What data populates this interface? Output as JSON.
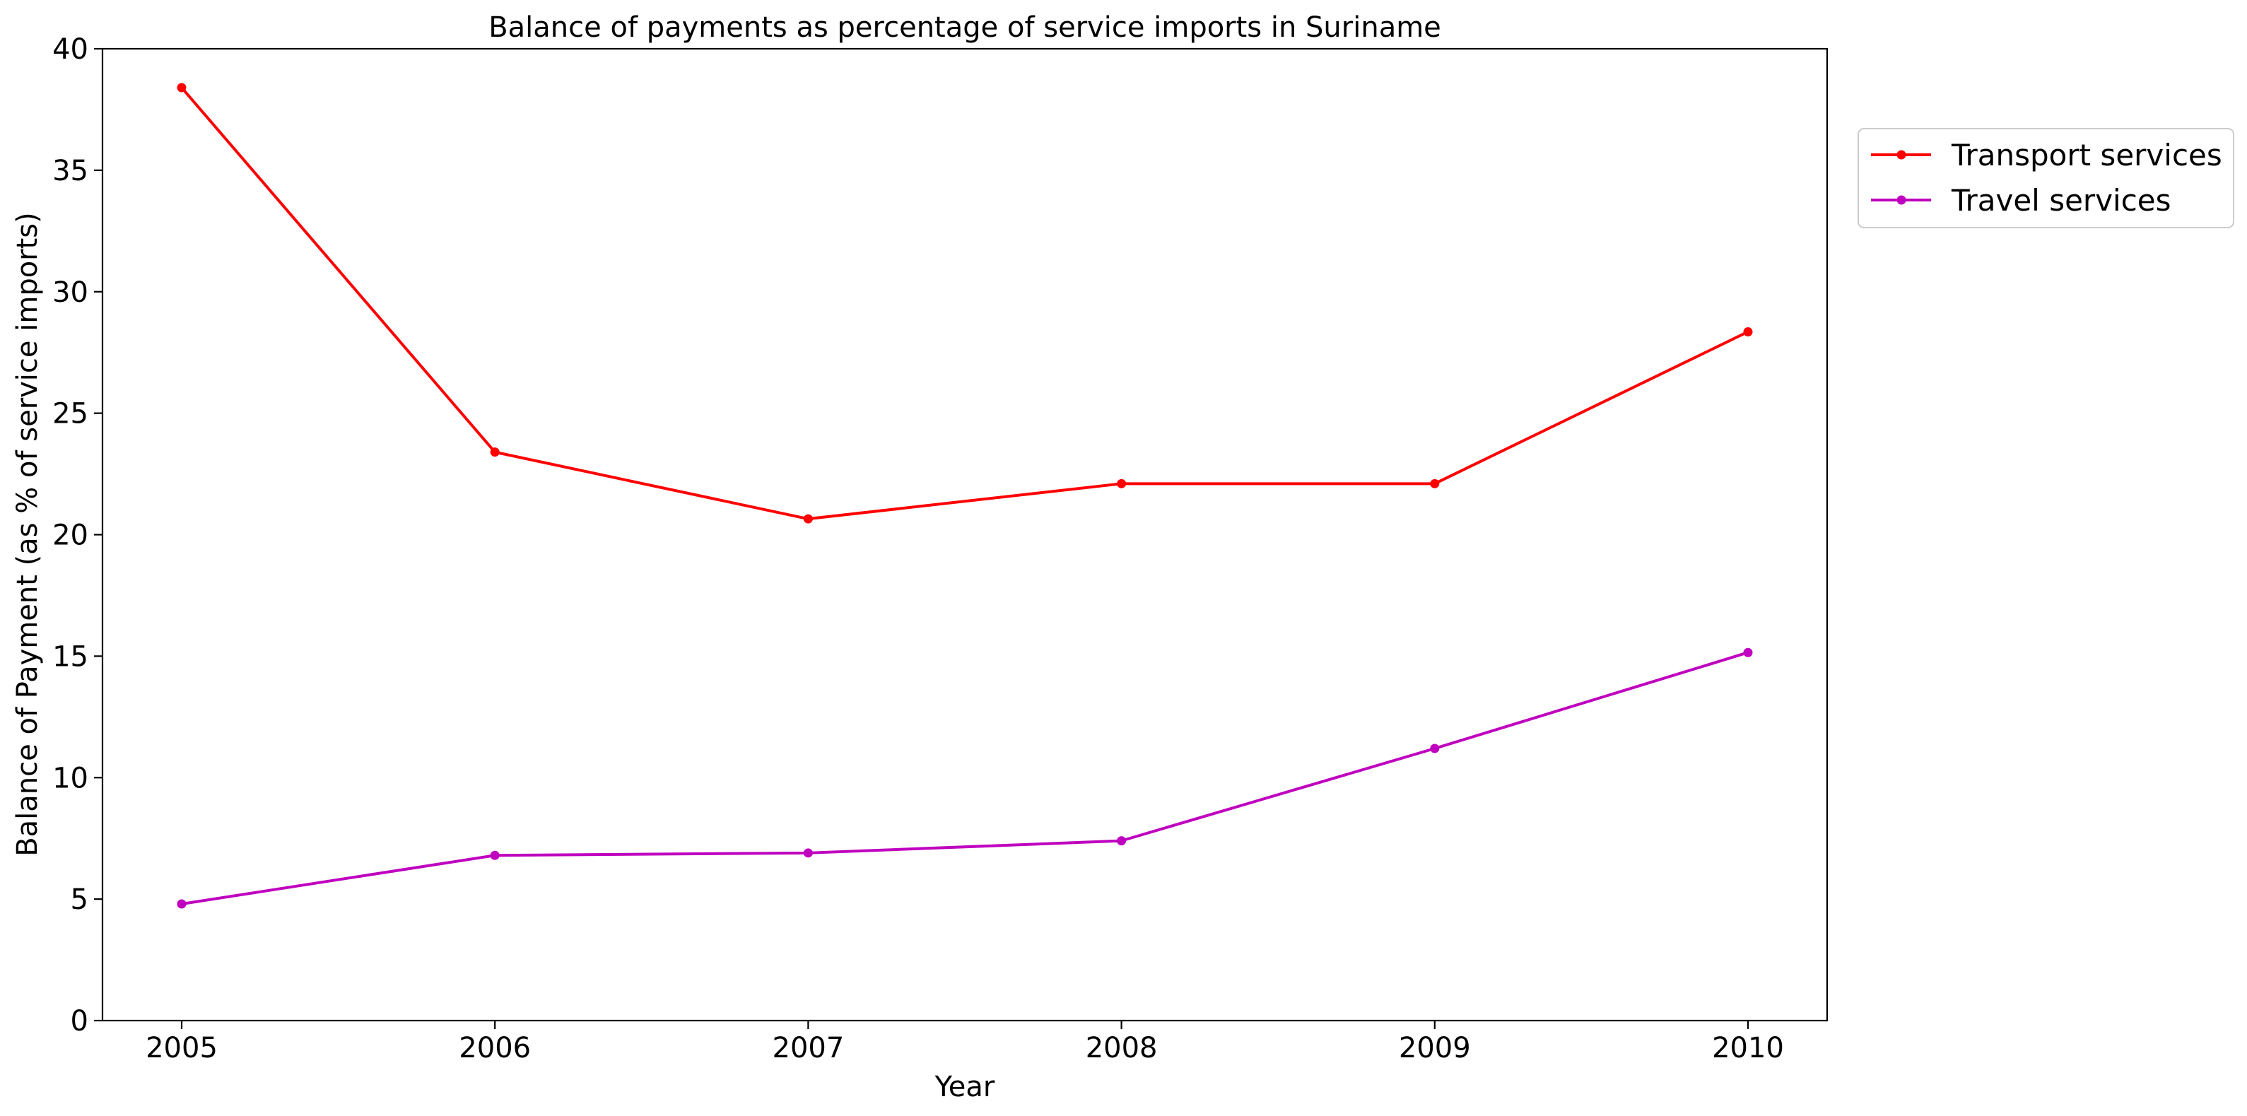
{
  "chart_data": {
    "type": "line",
    "title": "Balance of payments as percentage of service imports in Suriname",
    "xlabel": "Year",
    "ylabel": "Balance of Payment (as % of service imports)",
    "x": [
      "2005",
      "2006",
      "2007",
      "2008",
      "2009",
      "2010"
    ],
    "ylim": [
      0,
      40
    ],
    "yticks": [
      "0",
      "5",
      "10",
      "15",
      "20",
      "25",
      "30",
      "35",
      "40"
    ],
    "grid": false,
    "legend_position": "outside-top-right",
    "series": [
      {
        "name": "Transport services",
        "color": "#ff0000",
        "values": [
          38.4,
          23.4,
          20.65,
          22.1,
          22.1,
          28.35
        ]
      },
      {
        "name": "Travel services",
        "color": "#bf00bf",
        "values": [
          4.8,
          6.8,
          6.9,
          7.4,
          11.2,
          15.15
        ]
      }
    ]
  }
}
